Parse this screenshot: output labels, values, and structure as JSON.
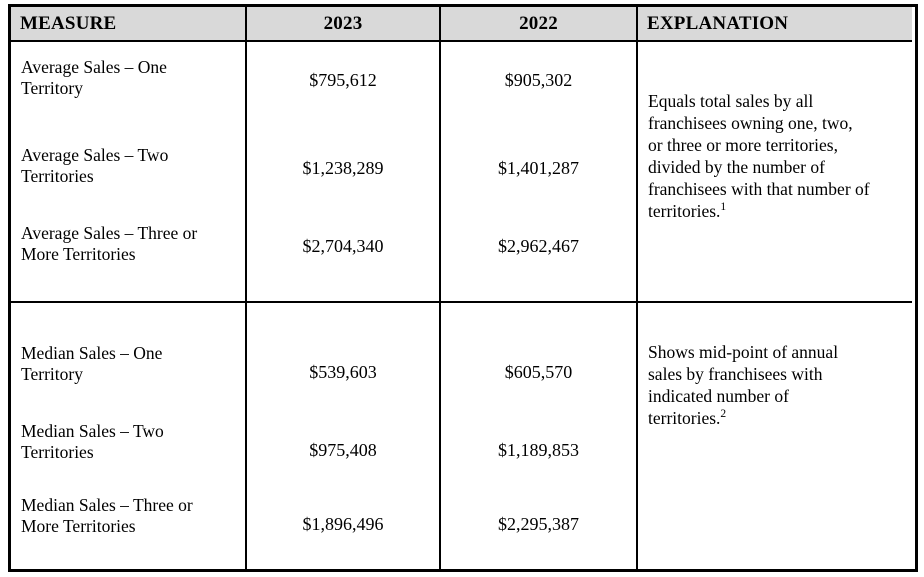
{
  "page": {
    "background": "#ffffff"
  },
  "table": {
    "border_color": "#000000",
    "text_color": "#000000",
    "header": {
      "bg": "#d9d9d9",
      "columns": [
        "MEASURE",
        "2023",
        "2022",
        "EXPLANATION"
      ]
    },
    "sections": [
      {
        "rows": [
          {
            "measure": "Average Sales – One Territory",
            "v2023": "$795,612",
            "v2022": "$905,302"
          },
          {
            "measure": "Average Sales – Two Territories",
            "v2023": "$1,238,289",
            "v2022": "$1,401,287"
          },
          {
            "measure": "Average Sales – Three or More Territories",
            "v2023": "$2,704,340",
            "v2022": "$2,962,467"
          }
        ],
        "explanation": {
          "text": "Equals total sales by all franchisees owning one, two, or three or more territories, divided by the number of franchisees with that number of territories.",
          "footnote": "1"
        }
      },
      {
        "rows": [
          {
            "measure": "Median Sales – One Territory",
            "v2023": "$539,603",
            "v2022": "$605,570"
          },
          {
            "measure": "Median Sales – Two Territories",
            "v2023": "$975,408",
            "v2022": "$1,189,853"
          },
          {
            "measure": "Median Sales – Three or More Territories",
            "v2023": "$1,896,496",
            "v2022": "$2,295,387"
          }
        ],
        "explanation": {
          "text": "Shows mid-point of annual sales by franchisees with indicated number of territories.",
          "footnote": "2"
        }
      }
    ]
  }
}
